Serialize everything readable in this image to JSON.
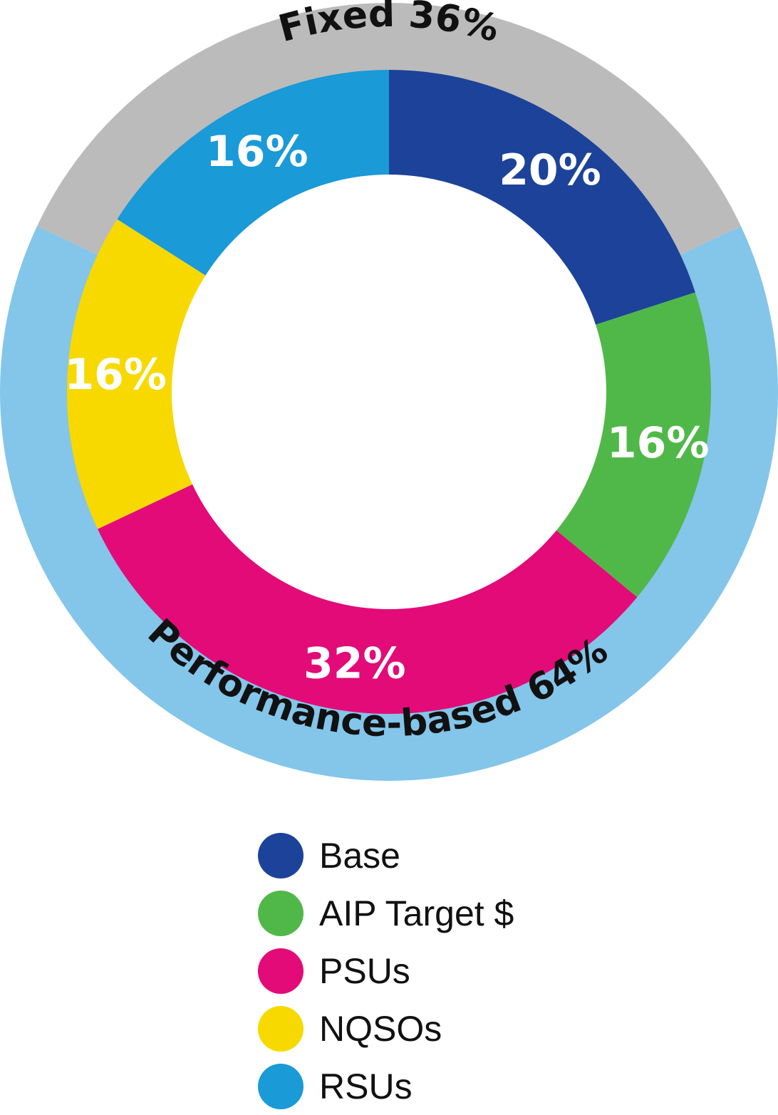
{
  "chart_data": {
    "type": "pie",
    "inner": {
      "categories": [
        "Base",
        "AIP Target $",
        "PSUs",
        "NQSOs",
        "RSUs"
      ],
      "values": [
        20,
        16,
        32,
        16,
        16
      ],
      "labels": [
        "20%",
        "16%",
        "32%",
        "16%",
        "16%"
      ],
      "colors": [
        "#1c4399",
        "#50b848",
        "#e20b78",
        "#f7d900",
        "#1a9ad7"
      ]
    },
    "outer": {
      "categories": [
        "Fixed 36%",
        "Performance-based 64%"
      ],
      "values": [
        36,
        64
      ],
      "colors": [
        "#bbbbbb",
        "#84c5ea"
      ]
    },
    "legend": {
      "position": "bottom",
      "items": [
        {
          "label": "Base",
          "color": "#1c4399"
        },
        {
          "label": "AIP Target $",
          "color": "#50b848"
        },
        {
          "label": "PSUs",
          "color": "#e20b78"
        },
        {
          "label": "NQSOs",
          "color": "#f7d900"
        },
        {
          "label": "RSUs",
          "color": "#1a9ad7"
        }
      ]
    }
  }
}
